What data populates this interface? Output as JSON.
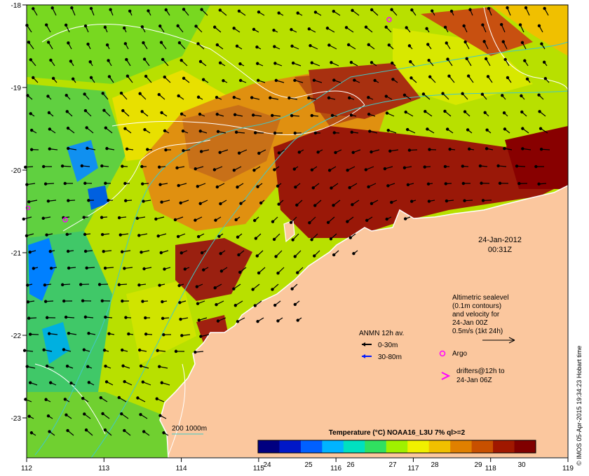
{
  "map": {
    "lon_ticks": [
      "112",
      "113",
      "114",
      "115",
      "116",
      "117",
      "118",
      "119"
    ],
    "lat_ticks": [
      "-18",
      "-19",
      "-20",
      "-21",
      "-22",
      "-23"
    ],
    "timestamp_date": "24-Jan-2012",
    "timestamp_time": "00:31Z",
    "credit": "© IMOS 05-Apr-2015 19:34:23 Hobart time",
    "land_color": "#fbc79e",
    "contour_color": "#ffffff",
    "isobath_color": "#40c8c8"
  },
  "legend": {
    "sealevel_lines": [
      "Altimetric sealevel",
      "(0.1m contours)",
      "and velocity for",
      "24-Jan 00Z",
      "0.5m/s (1kt 24h)"
    ],
    "anmn_title": "ANMN 12h av.",
    "anmn_shallow": "0-30m",
    "anmn_deep": "30-80m",
    "argo_label": "Argo",
    "drifters_lines": [
      "drifters@12h to",
      "24-Jan 06Z"
    ],
    "isobath_label": "200  1000m"
  },
  "colorbar": {
    "title": "Temperature (°C) NOAA16_L3U 7% ql>=2",
    "ticks": [
      "24",
      "25",
      "26",
      "27",
      "28",
      "29",
      "30"
    ],
    "colors": [
      "#000080",
      "#0018c8",
      "#0060ff",
      "#00b4ff",
      "#00e0c0",
      "#30e060",
      "#a0f000",
      "#f0f000",
      "#f0c000",
      "#e08000",
      "#c85000",
      "#a01800",
      "#800000"
    ]
  }
}
